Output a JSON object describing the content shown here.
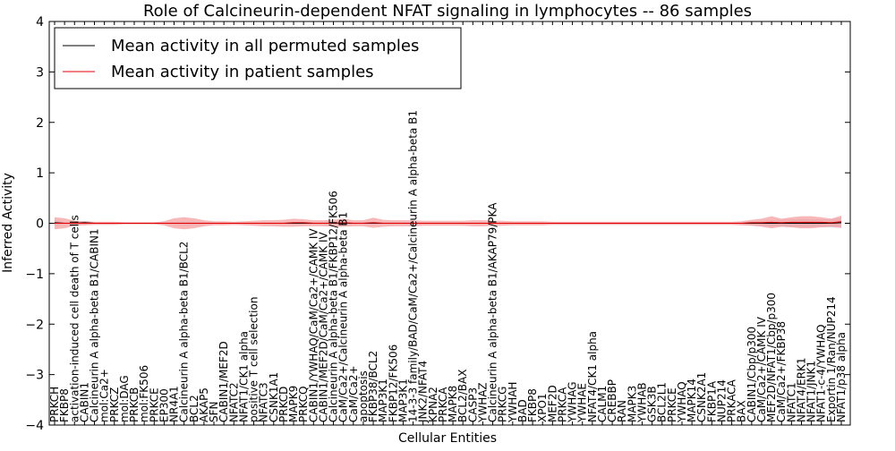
{
  "chart_data": {
    "type": "line",
    "title": "Role of Calcineurin-dependent NFAT signaling in lymphocytes -- 86 samples",
    "xlabel": "Cellular Entities",
    "ylabel": "Inferred Activity",
    "ylim": [
      -4,
      4
    ],
    "yticks": [
      -4,
      -3,
      -2,
      -1,
      0,
      1,
      2,
      3,
      4
    ],
    "grid": false,
    "legend_position": "top-left",
    "categories": [
      "PRKCH",
      "FKBP8",
      "activation-induced cell death of T cells",
      "CABIN1",
      "Calcineurin A alpha-beta B1/CABIN1",
      "mol:Ca2+",
      "PRKCZ",
      "mol:DAG",
      "PRKCB",
      "mol:FK506",
      "PRKCE",
      "EP300",
      "NR4A1",
      "Calcineurin A alpha-beta B1/BCL2",
      "BCL2",
      "AKAP5",
      "SFN",
      "CABIN1/MEF2D",
      "NFATC2",
      "NFAT1/CK1 alpha",
      "positive T cell selection",
      "NFATC3",
      "CSNK1A1",
      "PRKCD",
      "MAPK9",
      "PRKCQ",
      "CABIN1/YWHAQ/CaM/Ca2+/CAMK IV",
      "CABIN1/MEF2D/CaM/Ca2+/CAMK IV",
      "Calcineurin A alpha-beta B1/FKBP12/FK506",
      "CaM/Ca2+/Calcineurin A alpha-beta B1",
      "CaM/Ca2+",
      "apoptosis",
      "FKBP38/BCL2",
      "MAP3K1",
      "FKBP12/FK506",
      "MAP3K1",
      "14-3-3 family/BAD/CaM/Ca2+/Calcineurin A alpha-beta B1",
      "JNK2/NFAT4",
      "KPNA2",
      "PRKCA",
      "MAPK8",
      "BCL2/BAX",
      "CASP3",
      "YWHAZ",
      "Calcineurin A alpha-beta B1/AKAP79/PKA",
      "PRKCG",
      "YWHAH",
      "BAD",
      "FKBP8",
      "XPO1",
      "MEF2D",
      "PRKCA",
      "YWHAG",
      "YWHAE",
      "NFAT4/CK1 alpha",
      "CALM1",
      "CREBBP",
      "RAN",
      "MAPK3",
      "YWHAB",
      "GSK3B",
      "BCL2L1",
      "PRKCE",
      "YWHAQ",
      "MAPK14",
      "CSNK2A1",
      "FKBP1A",
      "NUP214",
      "PRKACA",
      "BAX",
      "CABIN1/Cbp/p300",
      "CaM/Ca2+/CAMK IV",
      "MEF2D/NFAT1/Cbp/p300",
      "CaM/Ca2+/FKBP38",
      "NFATC1",
      "NFAT4/ERK1",
      "NFAT1/JNK1",
      "NFAT1-c-4/YWHAQ",
      "Exportin 1/Ran/NUP214",
      "NFAT1/p38 alpha"
    ],
    "series": [
      {
        "name": "Mean activity in all permuted samples",
        "color": "#000000",
        "band_color": "#c8c8dc",
        "values": [
          0.01,
          0.0,
          0.0,
          0.01,
          0.0,
          0.0,
          0.0,
          0.0,
          0.0,
          0.0,
          0.0,
          0.0,
          0.0,
          0.0,
          0.0,
          0.0,
          0.0,
          0.0,
          0.0,
          0.0,
          0.0,
          0.0,
          0.0,
          0.0,
          0.0,
          0.0,
          0.0,
          0.0,
          0.0,
          0.0,
          0.0,
          0.0,
          0.0,
          0.0,
          0.0,
          0.0,
          0.0,
          0.0,
          0.0,
          0.0,
          0.0,
          0.0,
          0.0,
          0.0,
          0.0,
          0.0,
          0.0,
          0.0,
          0.0,
          0.0,
          0.0,
          0.0,
          0.0,
          0.0,
          0.0,
          0.0,
          0.0,
          0.0,
          0.0,
          0.0,
          0.0,
          0.0,
          0.0,
          0.0,
          0.0,
          0.0,
          0.0,
          0.0,
          0.0,
          0.0,
          0.0,
          0.0,
          0.0,
          0.0,
          0.0,
          0.0,
          0.0,
          0.0,
          0.0,
          0.01
        ],
        "band": [
          0.05,
          0.02,
          0.02,
          0.04,
          0.02,
          0.02,
          0.02,
          0.02,
          0.02,
          0.02,
          0.02,
          0.03,
          0.03,
          0.04,
          0.04,
          0.03,
          0.02,
          0.02,
          0.02,
          0.02,
          0.02,
          0.02,
          0.02,
          0.02,
          0.02,
          0.02,
          0.03,
          0.03,
          0.03,
          0.03,
          0.03,
          0.03,
          0.03,
          0.03,
          0.03,
          0.03,
          0.03,
          0.02,
          0.02,
          0.02,
          0.02,
          0.02,
          0.02,
          0.02,
          0.02,
          0.02,
          0.02,
          0.02,
          0.02,
          0.02,
          0.02,
          0.02,
          0.02,
          0.02,
          0.02,
          0.02,
          0.02,
          0.02,
          0.02,
          0.02,
          0.02,
          0.02,
          0.02,
          0.02,
          0.02,
          0.02,
          0.02,
          0.02,
          0.02,
          0.03,
          0.04,
          0.05,
          0.06,
          0.07,
          0.08,
          0.08,
          0.08,
          0.08,
          0.08,
          0.1
        ]
      },
      {
        "name": "Mean activity in patient samples",
        "color": "#e60000",
        "band_color": "#f5a0a0",
        "values": [
          0.0,
          0.0,
          0.0,
          0.0,
          0.0,
          0.0,
          0.0,
          0.0,
          0.0,
          0.0,
          0.0,
          0.0,
          0.0,
          0.0,
          0.0,
          0.0,
          0.0,
          0.0,
          0.0,
          0.0,
          0.0,
          0.0,
          0.0,
          0.0,
          0.01,
          0.01,
          0.0,
          0.0,
          0.0,
          0.01,
          0.0,
          0.0,
          0.01,
          0.0,
          0.0,
          0.0,
          0.0,
          0.0,
          0.0,
          0.0,
          0.0,
          0.0,
          0.0,
          0.0,
          0.0,
          0.0,
          0.0,
          0.0,
          0.0,
          0.0,
          0.0,
          0.0,
          0.0,
          0.0,
          0.0,
          0.0,
          0.0,
          0.0,
          0.0,
          0.0,
          0.0,
          0.0,
          0.0,
          0.0,
          0.0,
          0.0,
          0.0,
          0.0,
          0.0,
          0.0,
          0.01,
          0.01,
          0.02,
          0.01,
          0.02,
          0.02,
          0.02,
          0.02,
          0.01,
          0.03
        ],
        "band": [
          0.12,
          0.1,
          0.05,
          0.04,
          0.03,
          0.03,
          0.03,
          0.02,
          0.02,
          0.02,
          0.02,
          0.04,
          0.1,
          0.12,
          0.1,
          0.06,
          0.04,
          0.04,
          0.03,
          0.04,
          0.05,
          0.06,
          0.06,
          0.07,
          0.08,
          0.07,
          0.06,
          0.06,
          0.07,
          0.08,
          0.06,
          0.06,
          0.1,
          0.07,
          0.06,
          0.06,
          0.06,
          0.05,
          0.05,
          0.05,
          0.05,
          0.05,
          0.06,
          0.06,
          0.05,
          0.05,
          0.04,
          0.04,
          0.04,
          0.04,
          0.03,
          0.03,
          0.03,
          0.03,
          0.03,
          0.03,
          0.03,
          0.03,
          0.03,
          0.03,
          0.03,
          0.03,
          0.03,
          0.03,
          0.03,
          0.03,
          0.03,
          0.03,
          0.03,
          0.04,
          0.06,
          0.08,
          0.12,
          0.08,
          0.1,
          0.12,
          0.12,
          0.1,
          0.08,
          0.12
        ]
      }
    ]
  }
}
